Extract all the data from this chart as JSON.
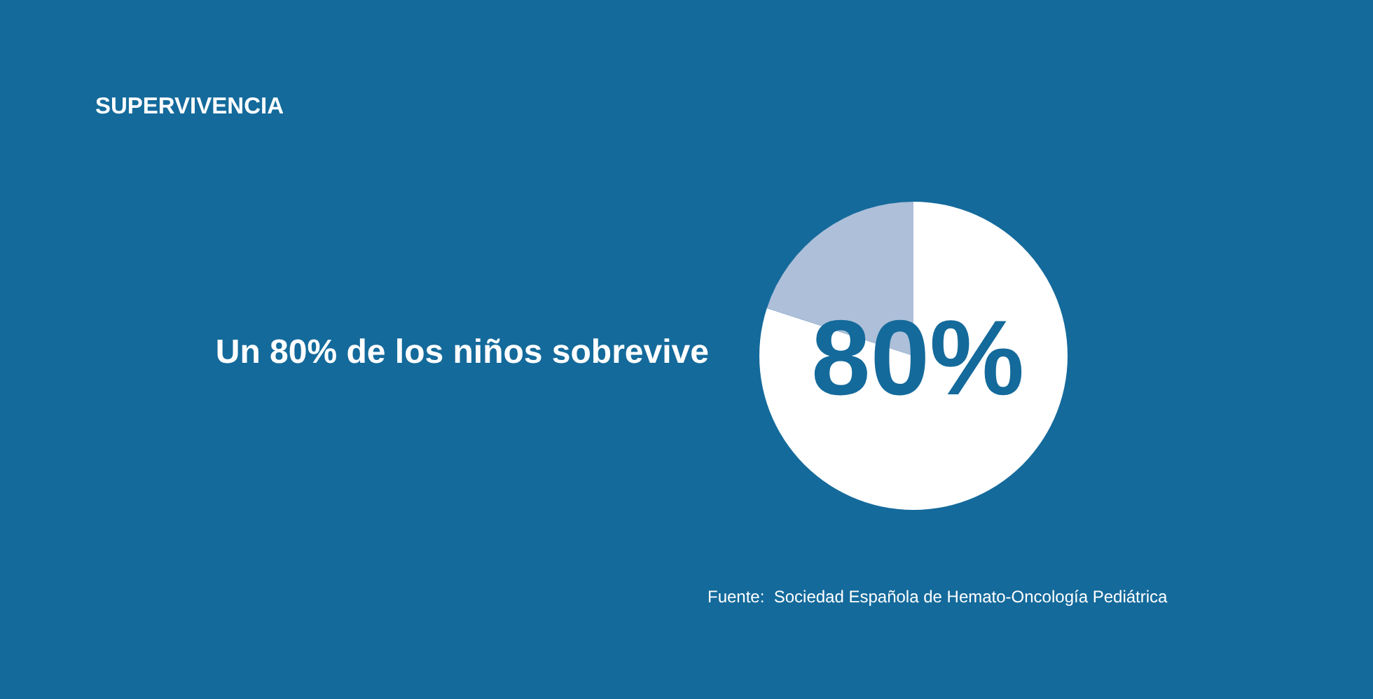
{
  "chart_data": {
    "type": "pie",
    "title": "SUPERVIVENCIA",
    "subtitle": "Un 80% de los niños sobrevive",
    "categories": [
      null,
      null
    ],
    "values": [
      80,
      20
    ],
    "colors": [
      "#ffffff",
      "#adbfd9"
    ],
    "value_labels": [
      "80%",
      null
    ],
    "annotations": [
      "Fuente:  Sociedad Española de Hemato-Oncología Pediátrica"
    ]
  }
}
